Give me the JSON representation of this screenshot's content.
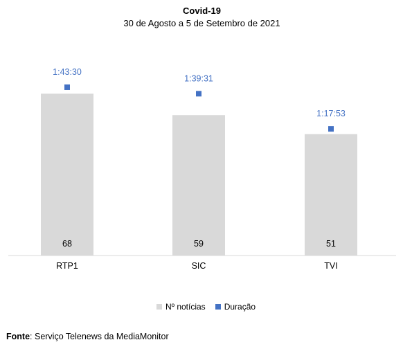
{
  "chart_data": {
    "type": "bar",
    "title": "Covid-19",
    "subtitle": "30 de Agosto a 5 de Setembro de 2021",
    "categories": [
      "RTP1",
      "SIC",
      "TVI"
    ],
    "series": [
      {
        "name": "Nº notícias",
        "values": [
          68,
          59,
          51
        ],
        "color": "#d9d9d9",
        "labels": [
          "68",
          "59",
          "51"
        ]
      },
      {
        "name": "Duração",
        "values_seconds": [
          6210,
          5971,
          4673
        ],
        "labels": [
          "1:43:30",
          "1:39:31",
          "1:17:53"
        ],
        "color": "#4472c4",
        "marker": "square"
      }
    ],
    "ylim_bars": [
      0,
      87
    ],
    "ylim_duration_seconds": [
      0,
      7640
    ],
    "grid": false,
    "legend_position": "bottom"
  },
  "source": {
    "label": "Fonte",
    "text": "Serviço Telenews da MediaMonitor"
  }
}
